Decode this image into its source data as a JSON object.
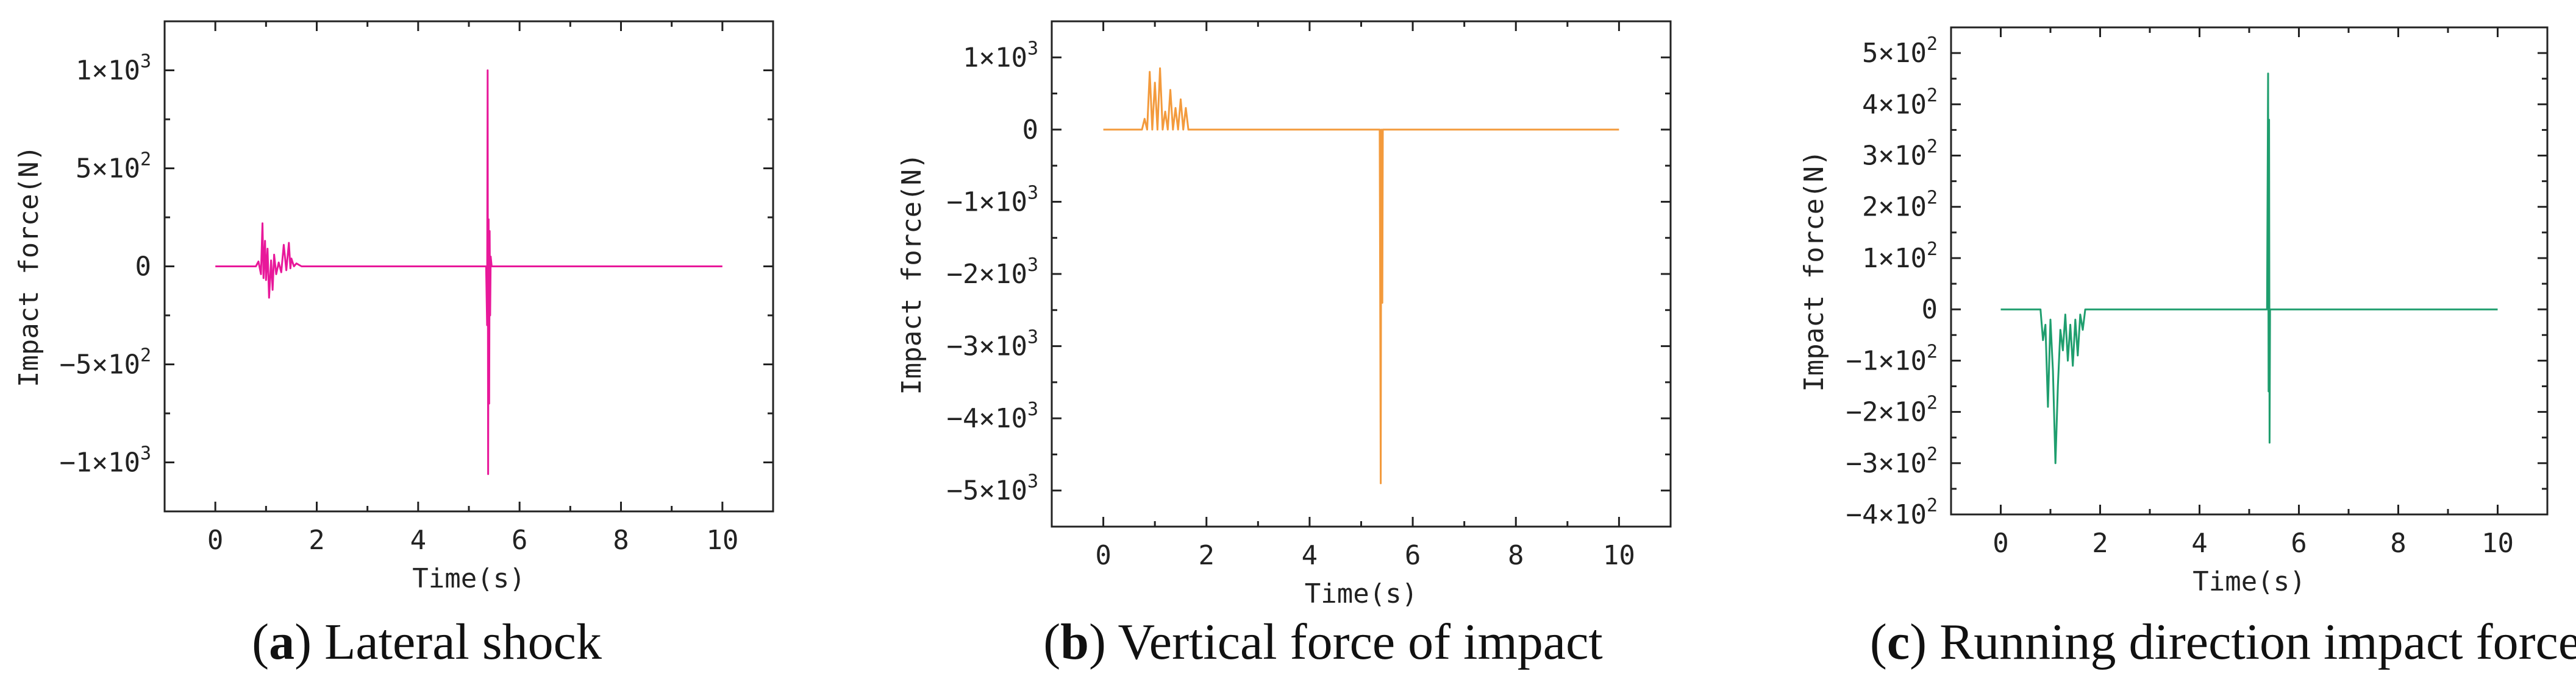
{
  "chart_data": [
    {
      "id": "a",
      "type": "line",
      "title": "",
      "caption_letter": "a",
      "caption_text": "Lateral shock",
      "xlabel": "Time(s)",
      "ylabel": "Impact force(N)",
      "xlim": [
        -1,
        11
      ],
      "ylim": [
        -1250,
        1250
      ],
      "xticks": [
        0,
        2,
        4,
        6,
        8,
        10
      ],
      "xtick_labels": [
        "0",
        "2",
        "4",
        "6",
        "8",
        "10"
      ],
      "yticks": [
        1000,
        500,
        0,
        -500,
        -1000
      ],
      "ytick_labels": [
        {
          "mantissa": "1",
          "exp": "3"
        },
        {
          "mantissa": "5",
          "exp": "2"
        },
        {
          "mantissa": "0",
          "exp": ""
        },
        {
          "mantissa": "−5",
          "exp": "2"
        },
        {
          "mantissa": "−1",
          "exp": "3"
        }
      ],
      "color": "#e8189a",
      "series": [
        {
          "name": "Lateral shock",
          "x": [
            0,
            0.8,
            0.85,
            0.9,
            0.93,
            0.95,
            0.98,
            1.0,
            1.03,
            1.06,
            1.1,
            1.13,
            1.16,
            1.2,
            1.25,
            1.3,
            1.35,
            1.4,
            1.45,
            1.48,
            1.5,
            1.55,
            1.6,
            1.7,
            5.34,
            5.36,
            5.37,
            5.38,
            5.39,
            5.4,
            5.41,
            5.42,
            5.43,
            5.45,
            10
          ],
          "y": [
            0,
            0,
            25,
            -40,
            220,
            -60,
            130,
            -70,
            90,
            -160,
            30,
            -120,
            60,
            -40,
            20,
            -30,
            110,
            -20,
            120,
            -10,
            40,
            0,
            15,
            0,
            0,
            -300,
            1000,
            -1060,
            240,
            -700,
            180,
            -250,
            50,
            0,
            0
          ]
        }
      ]
    },
    {
      "id": "b",
      "type": "line",
      "title": "",
      "caption_letter": "b",
      "caption_text": "Vertical force of impact",
      "xlabel": "Time(s)",
      "ylabel": "Impact force(N)",
      "xlim": [
        -1,
        11
      ],
      "ylim": [
        -5500,
        1500
      ],
      "xticks": [
        0,
        2,
        4,
        6,
        8,
        10
      ],
      "xtick_labels": [
        "0",
        "2",
        "4",
        "6",
        "8",
        "10"
      ],
      "yticks": [
        1000,
        0,
        -1000,
        -2000,
        -3000,
        -4000,
        -5000
      ],
      "ytick_labels": [
        {
          "mantissa": "1",
          "exp": "3"
        },
        {
          "mantissa": "0",
          "exp": ""
        },
        {
          "mantissa": "−1",
          "exp": "3"
        },
        {
          "mantissa": "−2",
          "exp": "3"
        },
        {
          "mantissa": "−3",
          "exp": "3"
        },
        {
          "mantissa": "−4",
          "exp": "3"
        },
        {
          "mantissa": "−5",
          "exp": "3"
        }
      ],
      "color": "#f39a3c",
      "series": [
        {
          "name": "Vertical force of impact",
          "x": [
            0,
            0.75,
            0.8,
            0.85,
            0.9,
            0.95,
            1.0,
            1.05,
            1.1,
            1.15,
            1.2,
            1.25,
            1.3,
            1.35,
            1.4,
            1.45,
            1.5,
            1.55,
            1.6,
            1.65,
            1.7,
            5.36,
            5.38,
            5.39,
            5.4,
            5.41,
            5.42,
            5.44,
            10
          ],
          "y": [
            0,
            0,
            150,
            0,
            800,
            0,
            650,
            0,
            850,
            0,
            250,
            0,
            550,
            0,
            300,
            0,
            420,
            0,
            300,
            0,
            0,
            0,
            -4900,
            0,
            -1600,
            -2400,
            0,
            0,
            0
          ]
        }
      ]
    },
    {
      "id": "c",
      "type": "line",
      "title": "",
      "caption_letter": "c",
      "caption_text": "Running direction impact force",
      "xlabel": "Time(s)",
      "ylabel": "Impact force(N)",
      "xlim": [
        -1,
        11
      ],
      "ylim": [
        -400,
        550
      ],
      "xticks": [
        0,
        2,
        4,
        6,
        8,
        10
      ],
      "xtick_labels": [
        "0",
        "2",
        "4",
        "6",
        "8",
        "10"
      ],
      "yticks": [
        500,
        400,
        300,
        200,
        100,
        0,
        -100,
        -200,
        -300,
        -400
      ],
      "ytick_labels": [
        {
          "mantissa": "5",
          "exp": "2"
        },
        {
          "mantissa": "4",
          "exp": "2"
        },
        {
          "mantissa": "3",
          "exp": "2"
        },
        {
          "mantissa": "2",
          "exp": "2"
        },
        {
          "mantissa": "1",
          "exp": "2"
        },
        {
          "mantissa": "0",
          "exp": ""
        },
        {
          "mantissa": "−1",
          "exp": "2"
        },
        {
          "mantissa": "−2",
          "exp": "2"
        },
        {
          "mantissa": "−3",
          "exp": "2"
        },
        {
          "mantissa": "−4",
          "exp": "2"
        }
      ],
      "color": "#1f9e6e",
      "series": [
        {
          "name": "Running direction impact force",
          "x": [
            0,
            0.8,
            0.85,
            0.9,
            0.95,
            1.0,
            1.05,
            1.1,
            1.15,
            1.2,
            1.25,
            1.3,
            1.35,
            1.4,
            1.45,
            1.5,
            1.55,
            1.6,
            1.65,
            1.7,
            5.36,
            5.38,
            5.39,
            5.4,
            5.41,
            5.42,
            10
          ],
          "y": [
            0,
            0,
            -60,
            -30,
            -190,
            -20,
            -120,
            -300,
            -150,
            -40,
            -80,
            -10,
            -100,
            -30,
            -110,
            -20,
            -90,
            -10,
            -40,
            0,
            0,
            460,
            -160,
            370,
            -260,
            0,
            0
          ]
        }
      ]
    }
  ]
}
